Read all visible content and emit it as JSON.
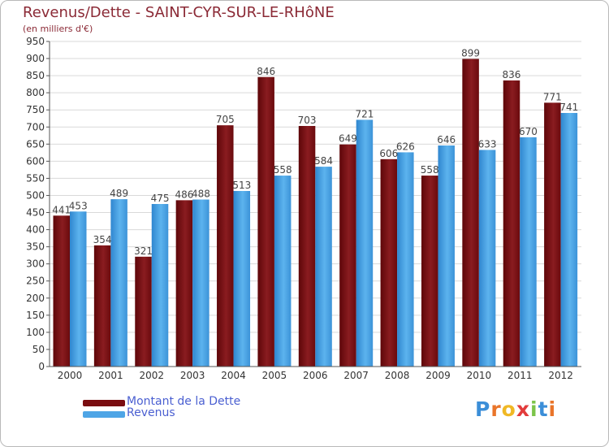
{
  "title": "Revenus/Dette - SAINT-CYR-SUR-LE-RHôNE",
  "subtitle": "(en milliers d'€)",
  "colors": {
    "title": "#8b2a36",
    "dette": "#7a0d10",
    "revenus": "#4ea5e6",
    "grid": "#d9d9d9",
    "legend_text": "#4a5fd1"
  },
  "legend": {
    "dette_label": "Montant de la Dette",
    "revenus_label": "Revenus"
  },
  "logo": {
    "letters": [
      "P",
      "r",
      "o",
      "x",
      "i",
      "t",
      "i"
    ],
    "colors": [
      "#3b8ed8",
      "#e9752a",
      "#f0b825",
      "#e23b3b",
      "#7cc44a",
      "#3b8ed8",
      "#e9752a"
    ]
  },
  "chart_data": {
    "type": "bar",
    "categories": [
      "2000",
      "2001",
      "2002",
      "2003",
      "2004",
      "2005",
      "2006",
      "2007",
      "2008",
      "2009",
      "2010",
      "2011",
      "2012"
    ],
    "series": [
      {
        "name": "Montant de la Dette",
        "values": [
          441,
          354,
          321,
          486,
          705,
          846,
          703,
          649,
          606,
          558,
          899,
          836,
          771
        ]
      },
      {
        "name": "Revenus",
        "values": [
          453,
          489,
          475,
          488,
          513,
          558,
          584,
          721,
          626,
          646,
          633,
          670,
          741
        ]
      }
    ],
    "ylim": [
      0,
      950
    ],
    "yticks": [
      0,
      50,
      100,
      150,
      200,
      250,
      300,
      350,
      400,
      450,
      500,
      550,
      600,
      650,
      700,
      750,
      800,
      850,
      900,
      950
    ],
    "grid": true,
    "legend_position": "bottom-left"
  }
}
